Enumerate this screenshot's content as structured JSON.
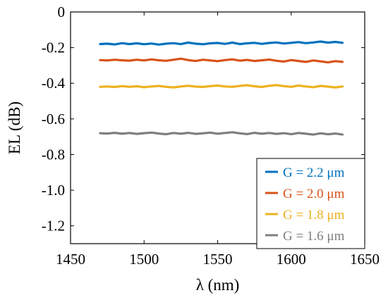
{
  "chart_data": {
    "type": "line",
    "title": "",
    "xlabel": "λ (nm)",
    "ylabel": "EL (dB)",
    "xlim": [
      1450,
      1650
    ],
    "ylim": [
      -1.3,
      0
    ],
    "xticks": [
      1450,
      1500,
      1550,
      1600,
      1650
    ],
    "yticks": [
      0,
      -0.2,
      -0.4,
      -0.6,
      -0.8,
      -1.0,
      -1.2
    ],
    "xtick_labels": [
      "1450",
      "1500",
      "1550",
      "1600",
      "1650"
    ],
    "ytick_labels": [
      "0",
      "-0.2",
      "-0.4",
      "-0.6",
      "-0.8",
      "-1.0",
      "-1.2"
    ],
    "grid": false,
    "legend_position": "bottom-right",
    "x": [
      1470,
      1475,
      1480,
      1485,
      1490,
      1495,
      1500,
      1505,
      1510,
      1515,
      1520,
      1525,
      1530,
      1535,
      1540,
      1545,
      1550,
      1555,
      1560,
      1565,
      1570,
      1575,
      1580,
      1585,
      1590,
      1595,
      1600,
      1605,
      1610,
      1615,
      1620,
      1625,
      1630,
      1635
    ],
    "series": [
      {
        "name": "G = 2.2 μm",
        "color": "#0072BD",
        "values": [
          -0.18,
          -0.178,
          -0.182,
          -0.175,
          -0.18,
          -0.176,
          -0.181,
          -0.177,
          -0.183,
          -0.178,
          -0.175,
          -0.18,
          -0.172,
          -0.178,
          -0.181,
          -0.176,
          -0.174,
          -0.179,
          -0.172,
          -0.18,
          -0.176,
          -0.173,
          -0.179,
          -0.174,
          -0.171,
          -0.177,
          -0.173,
          -0.169,
          -0.175,
          -0.171,
          -0.166,
          -0.172,
          -0.168,
          -0.173
        ]
      },
      {
        "name": "G = 2.0 μm",
        "color": "#D95319",
        "values": [
          -0.27,
          -0.272,
          -0.268,
          -0.271,
          -0.273,
          -0.268,
          -0.272,
          -0.266,
          -0.271,
          -0.274,
          -0.268,
          -0.262,
          -0.27,
          -0.275,
          -0.268,
          -0.272,
          -0.276,
          -0.27,
          -0.266,
          -0.273,
          -0.269,
          -0.275,
          -0.271,
          -0.267,
          -0.274,
          -0.278,
          -0.27,
          -0.275,
          -0.28,
          -0.272,
          -0.277,
          -0.283,
          -0.276,
          -0.28
        ]
      },
      {
        "name": "G = 1.8 μm",
        "color": "#EDB120",
        "values": [
          -0.42,
          -0.418,
          -0.421,
          -0.416,
          -0.42,
          -0.417,
          -0.422,
          -0.418,
          -0.415,
          -0.42,
          -0.423,
          -0.418,
          -0.414,
          -0.419,
          -0.421,
          -0.416,
          -0.413,
          -0.418,
          -0.42,
          -0.415,
          -0.411,
          -0.417,
          -0.421,
          -0.414,
          -0.41,
          -0.416,
          -0.42,
          -0.413,
          -0.418,
          -0.422,
          -0.415,
          -0.419,
          -0.423,
          -0.418
        ]
      },
      {
        "name": "G = 1.6 μm",
        "color": "#7F7F7F",
        "values": [
          -0.68,
          -0.682,
          -0.678,
          -0.683,
          -0.679,
          -0.684,
          -0.68,
          -0.677,
          -0.682,
          -0.686,
          -0.679,
          -0.683,
          -0.678,
          -0.684,
          -0.681,
          -0.677,
          -0.683,
          -0.679,
          -0.675,
          -0.681,
          -0.685,
          -0.678,
          -0.683,
          -0.679,
          -0.684,
          -0.68,
          -0.686,
          -0.679,
          -0.683,
          -0.688,
          -0.681,
          -0.686,
          -0.682,
          -0.688
        ]
      }
    ]
  }
}
